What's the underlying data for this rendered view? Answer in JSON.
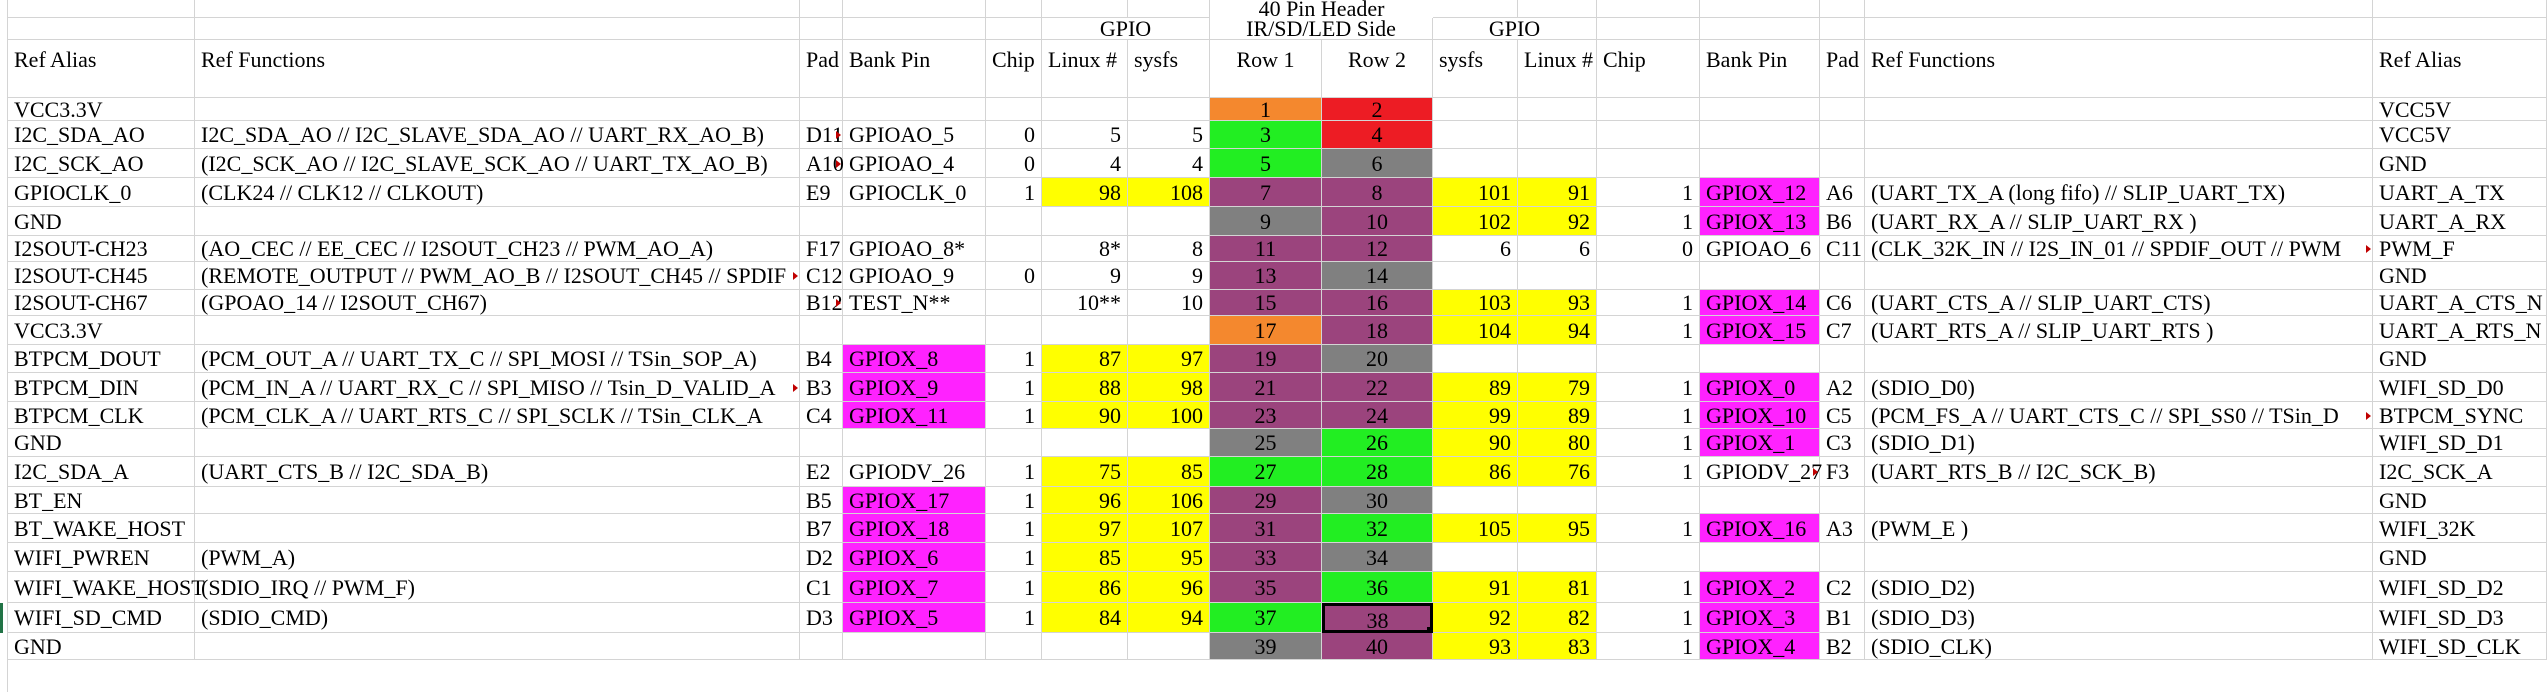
{
  "colors": {
    "orange": "#F4882E",
    "red": "#ED1C24",
    "green": "#22EE22",
    "gray": "#808080",
    "purple": "#9B447D",
    "yellow": "#FFFF00",
    "magenta": "#FF22FF",
    "selection": "#000000",
    "gridline": "#D4D4D4"
  },
  "headers": {
    "top": "40 Pin Header",
    "gpio_left": "GPIO",
    "side": "IR/SD/LED Side",
    "gpio_right": "GPIO"
  },
  "columns": [
    "Ref Alias",
    "Ref Functions",
    "Pad",
    "Bank Pin",
    "Chip",
    "Linux #",
    "sysfs",
    "Row 1",
    "Row 2",
    "sysfs",
    "Linux #",
    "Chip",
    "Bank Pin",
    "Pad",
    "Ref Functions",
    "Ref Alias"
  ],
  "rows": [
    [
      "VCC3.3V",
      "",
      "",
      "",
      "",
      "",
      "",
      "1",
      "2",
      "",
      "",
      "",
      "",
      "",
      "",
      "VCC5V"
    ],
    [
      "I2C_SDA_AO",
      "I2C_SDA_AO // I2C_SLAVE_SDA_AO // UART_RX_AO_B)",
      "D11",
      "GPIOAO_5",
      "0",
      "5",
      "5",
      "3",
      "4",
      "",
      "",
      "",
      "",
      "",
      "",
      "VCC5V"
    ],
    [
      "I2C_SCK_AO",
      "(I2C_SCK_AO // I2C_SLAVE_SCK_AO // UART_TX_AO_B)",
      "A10",
      "GPIOAO_4",
      "0",
      "4",
      "4",
      "5",
      "6",
      "",
      "",
      "",
      "",
      "",
      "",
      "GND"
    ],
    [
      "GPIOCLK_0",
      "(CLK24 // CLK12 // CLKOUT)",
      "E9",
      "GPIOCLK_0",
      "1",
      "98",
      "108",
      "7",
      "8",
      "101",
      "91",
      "1",
      "GPIOX_12",
      "A6",
      "(UART_TX_A (long fifo) // SLIP_UART_TX)",
      "UART_A_TX"
    ],
    [
      "GND",
      "",
      "",
      "",
      "",
      "",
      "",
      "9",
      "10",
      "102",
      "92",
      "1",
      "GPIOX_13",
      "B6",
      "(UART_RX_A // SLIP_UART_RX )",
      "UART_A_RX"
    ],
    [
      "I2SOUT-CH23",
      "(AO_CEC // EE_CEC // I2SOUT_CH23 // PWM_AO_A)",
      "F17",
      "GPIOAO_8*",
      "",
      "8*",
      "8",
      "11",
      "12",
      "6",
      "6",
      "0",
      "GPIOAO_6",
      "C11",
      "(CLK_32K_IN // I2S_IN_01 // SPDIF_OUT // PWM",
      "PWM_F"
    ],
    [
      "I2SOUT-CH45",
      "(REMOTE_OUTPUT // PWM_AO_B // I2SOUT_CH45 // SPDIF",
      "C12",
      "GPIOAO_9",
      "0",
      "9",
      "9",
      "13",
      "14",
      "",
      "",
      "",
      "",
      "",
      "",
      "GND"
    ],
    [
      "I2SOUT-CH67",
      "(GPOAO_14 // I2SOUT_CH67)",
      "B12",
      "TEST_N**",
      "",
      "10**",
      "10",
      "15",
      "16",
      "103",
      "93",
      "1",
      "GPIOX_14",
      "C6",
      "(UART_CTS_A // SLIP_UART_CTS)",
      "UART_A_CTS_N"
    ],
    [
      "VCC3.3V",
      "",
      "",
      "",
      "",
      "",
      "",
      "17",
      "18",
      "104",
      "94",
      "1",
      "GPIOX_15",
      "C7",
      "(UART_RTS_A // SLIP_UART_RTS )",
      "UART_A_RTS_N"
    ],
    [
      "BTPCM_DOUT",
      "(PCM_OUT_A // UART_TX_C // SPI_MOSI // TSin_SOP_A)",
      "B4",
      "GPIOX_8",
      "1",
      "87",
      "97",
      "19",
      "20",
      "",
      "",
      "",
      "",
      "",
      "",
      "GND"
    ],
    [
      "BTPCM_DIN",
      "(PCM_IN_A // UART_RX_C // SPI_MISO // Tsin_D_VALID_A",
      "B3",
      "GPIOX_9",
      "1",
      "88",
      "98",
      "21",
      "22",
      "89",
      "79",
      "1",
      "GPIOX_0",
      "A2",
      "(SDIO_D0)",
      "WIFI_SD_D0"
    ],
    [
      "BTPCM_CLK",
      "(PCM_CLK_A // UART_RTS_C // SPI_SCLK // TSin_CLK_A",
      "C4",
      "GPIOX_11",
      "1",
      "90",
      "100",
      "23",
      "24",
      "99",
      "89",
      "1",
      "GPIOX_10",
      "C5",
      "(PCM_FS_A // UART_CTS_C // SPI_SS0 // TSin_D",
      "BTPCM_SYNC"
    ],
    [
      "GND",
      "",
      "",
      "",
      "",
      "",
      "",
      "25",
      "26",
      "90",
      "80",
      "1",
      "GPIOX_1",
      "C3",
      "(SDIO_D1)",
      "WIFI_SD_D1"
    ],
    [
      "I2C_SDA_A",
      "(UART_CTS_B // I2C_SDA_B)",
      "E2",
      "GPIODV_26",
      "1",
      "75",
      "85",
      "27",
      "28",
      "86",
      "76",
      "1",
      "GPIODV_27",
      "F3",
      "(UART_RTS_B // I2C_SCK_B)",
      "I2C_SCK_A"
    ],
    [
      "BT_EN",
      "",
      "B5",
      "GPIOX_17",
      "1",
      "96",
      "106",
      "29",
      "30",
      "",
      "",
      "",
      "",
      "",
      "",
      "GND"
    ],
    [
      "BT_WAKE_HOST",
      "",
      "B7",
      "GPIOX_18",
      "1",
      "97",
      "107",
      "31",
      "32",
      "105",
      "95",
      "1",
      "GPIOX_16",
      "A3",
      "(PWM_E )",
      "WIFI_32K"
    ],
    [
      "WIFI_PWREN",
      "(PWM_A)",
      "D2",
      "GPIOX_6",
      "1",
      "85",
      "95",
      "33",
      "34",
      "",
      "",
      "",
      "",
      "",
      "",
      "GND"
    ],
    [
      "WIFI_WAKE_HOST",
      "(SDIO_IRQ // PWM_F)",
      "C1",
      "GPIOX_7",
      "1",
      "86",
      "96",
      "35",
      "36",
      "91",
      "81",
      "1",
      "GPIOX_2",
      "C2",
      "(SDIO_D2)",
      "WIFI_SD_D2"
    ],
    [
      "WIFI_SD_CMD",
      "(SDIO_CMD)",
      "D3",
      "GPIOX_5",
      "1",
      "84",
      "94",
      "37",
      "38",
      "92",
      "82",
      "1",
      "GPIOX_3",
      "B1",
      "(SDIO_D3)",
      "WIFI_SD_D3"
    ],
    [
      "GND",
      "",
      "",
      "",
      "",
      "",
      "",
      "39",
      "40",
      "93",
      "83",
      "1",
      "GPIOX_4",
      "B2",
      "(SDIO_CLK)",
      "WIFI_SD_CLK"
    ]
  ],
  "row1_colors": [
    "orange",
    "green",
    "green",
    "purple",
    "gray",
    "purple",
    "purple",
    "purple",
    "orange",
    "purple",
    "purple",
    "purple",
    "gray",
    "green",
    "purple",
    "purple",
    "purple",
    "purple",
    "green",
    "gray"
  ],
  "row2_colors": [
    "red",
    "red",
    "gray",
    "purple",
    "purple",
    "purple",
    "gray",
    "purple",
    "purple",
    "gray",
    "purple",
    "purple",
    "green",
    "green",
    "gray",
    "green",
    "gray",
    "green",
    "purple",
    "purple"
  ],
  "selected_cell": "38"
}
